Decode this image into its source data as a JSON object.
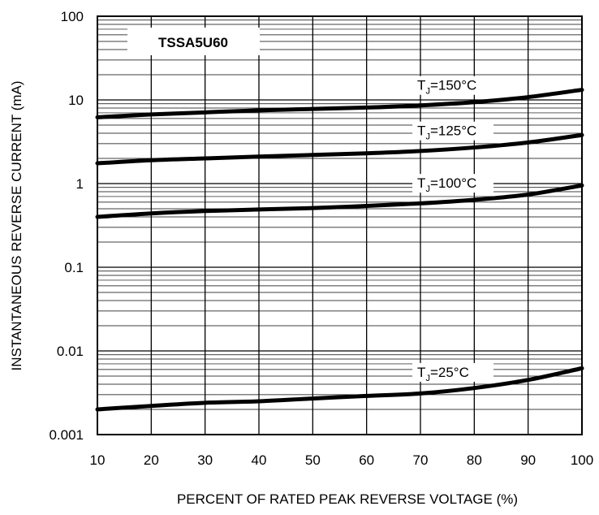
{
  "chart_data": {
    "type": "line",
    "title": "TSSA5U60",
    "xlabel": "PERCENT OF RATED PEAK REVERSE VOLTAGE (%)",
    "ylabel": "INSTANTANEOUS REVERSE CURRENT (mA)",
    "xlim": [
      10,
      100
    ],
    "ylim": [
      0.001,
      100
    ],
    "yscale": "log",
    "grid": true,
    "x_ticks": [
      "10",
      "20",
      "30",
      "40",
      "50",
      "60",
      "70",
      "80",
      "90",
      "100"
    ],
    "y_ticks": [
      "0.001",
      "0.01",
      "0.1",
      "1",
      "10",
      "100"
    ],
    "series": [
      {
        "label_main": "T",
        "label_sub": "J",
        "label_tail": "=150°C",
        "x": [
          10,
          20,
          30,
          40,
          50,
          60,
          70,
          80,
          90,
          100
        ],
        "values": [
          6.2,
          6.7,
          7.1,
          7.5,
          7.8,
          8.1,
          8.6,
          9.4,
          10.8,
          13.2
        ]
      },
      {
        "label_main": "T",
        "label_sub": "J",
        "label_tail": "=125°C",
        "x": [
          10,
          20,
          30,
          40,
          50,
          60,
          70,
          80,
          90,
          100
        ],
        "values": [
          1.75,
          1.9,
          2.0,
          2.1,
          2.2,
          2.3,
          2.45,
          2.7,
          3.1,
          3.8
        ]
      },
      {
        "label_main": "T",
        "label_sub": "J",
        "label_tail": "=100°C",
        "x": [
          10,
          20,
          30,
          40,
          50,
          60,
          70,
          80,
          90,
          100
        ],
        "values": [
          0.4,
          0.44,
          0.47,
          0.49,
          0.51,
          0.54,
          0.58,
          0.64,
          0.74,
          0.95
        ]
      },
      {
        "label_main": "T",
        "label_sub": "J",
        "label_tail": "=25°C",
        "x": [
          10,
          20,
          30,
          40,
          50,
          60,
          70,
          80,
          90,
          100
        ],
        "values": [
          0.002,
          0.0022,
          0.0024,
          0.0025,
          0.0027,
          0.0029,
          0.0031,
          0.0036,
          0.0045,
          0.0062
        ]
      }
    ]
  }
}
